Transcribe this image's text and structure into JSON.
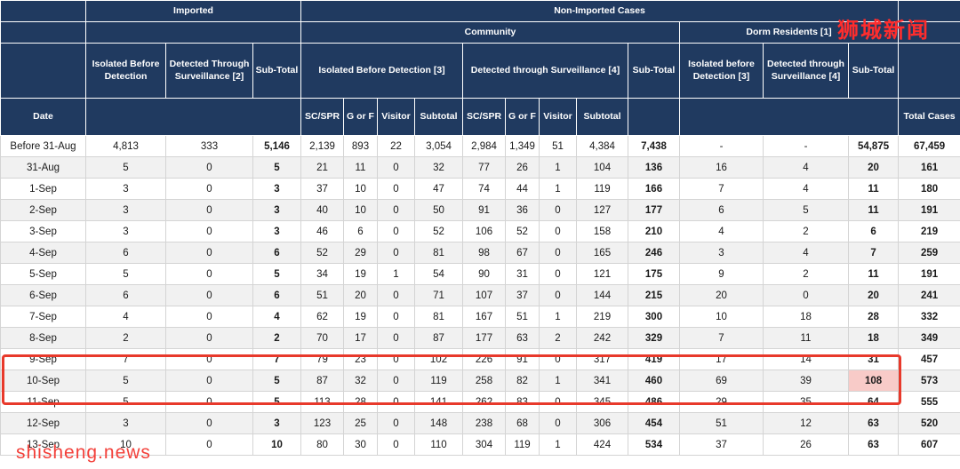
{
  "watermarks": {
    "top_right": "狮城新闻",
    "bottom_left": "shisheng.news"
  },
  "colors": {
    "header_bg": "#203a60",
    "highlight_border": "#e8392b",
    "highlight_cell_bg": "#f8cbc8",
    "watermark_red": "#ff2d2d",
    "watermark_site_red": "#f3403a",
    "row_alt": "#f1f1f1",
    "grid_line": "#d4d4d4"
  },
  "header": {
    "imported": "Imported",
    "non_imported": "Non-Imported Cases",
    "community": "Community",
    "dorm_residents": "Dorm Residents [1]",
    "imported_isolated": "Isolated Before Detection",
    "imported_surveillance": "Detected Through Surveillance [2]",
    "imported_subtotal": "Sub-Total",
    "community_isolated": "Isolated Before Detection [3]",
    "community_surveillance": "Detected through Surveillance [4]",
    "community_subtotal": "Sub-Total",
    "dorm_isolated": "Isolated before Detection [3]",
    "dorm_surveillance": "Detected through Surveillance [4]",
    "dorm_subtotal": "Sub-Total",
    "date": "Date",
    "sc_spr": "SC/SPR",
    "g_or_f": "G or F",
    "visitor": "Visitor",
    "subtotal": "Subtotal",
    "total_cases": "Total Cases"
  },
  "table": {
    "column_keys": [
      "date",
      "imported_isolated",
      "imported_surveillance",
      "imported_subtotal",
      "comm_iso_scspr",
      "comm_iso_gorf",
      "comm_iso_visitor",
      "comm_iso_subtotal",
      "comm_sur_scspr",
      "comm_sur_gorf",
      "comm_sur_visitor",
      "comm_sur_subtotal",
      "community_subtotal",
      "dorm_isolated",
      "dorm_surveillance",
      "dorm_subtotal",
      "total_cases"
    ],
    "bold_columns": [
      3,
      12,
      15,
      16
    ],
    "rows": [
      [
        "Before 31-Aug",
        "4,813",
        "333",
        "5,146",
        "2,139",
        "893",
        "22",
        "3,054",
        "2,984",
        "1,349",
        "51",
        "4,384",
        "7,438",
        "-",
        "-",
        "54,875",
        "67,459"
      ],
      [
        "31-Aug",
        "5",
        "0",
        "5",
        "21",
        "11",
        "0",
        "32",
        "77",
        "26",
        "1",
        "104",
        "136",
        "16",
        "4",
        "20",
        "161"
      ],
      [
        "1-Sep",
        "3",
        "0",
        "3",
        "37",
        "10",
        "0",
        "47",
        "74",
        "44",
        "1",
        "119",
        "166",
        "7",
        "4",
        "11",
        "180"
      ],
      [
        "2-Sep",
        "3",
        "0",
        "3",
        "40",
        "10",
        "0",
        "50",
        "91",
        "36",
        "0",
        "127",
        "177",
        "6",
        "5",
        "11",
        "191"
      ],
      [
        "3-Sep",
        "3",
        "0",
        "3",
        "46",
        "6",
        "0",
        "52",
        "106",
        "52",
        "0",
        "158",
        "210",
        "4",
        "2",
        "6",
        "219"
      ],
      [
        "4-Sep",
        "6",
        "0",
        "6",
        "52",
        "29",
        "0",
        "81",
        "98",
        "67",
        "0",
        "165",
        "246",
        "3",
        "4",
        "7",
        "259"
      ],
      [
        "5-Sep",
        "5",
        "0",
        "5",
        "34",
        "19",
        "1",
        "54",
        "90",
        "31",
        "0",
        "121",
        "175",
        "9",
        "2",
        "11",
        "191"
      ],
      [
        "6-Sep",
        "6",
        "0",
        "6",
        "51",
        "20",
        "0",
        "71",
        "107",
        "37",
        "0",
        "144",
        "215",
        "20",
        "0",
        "20",
        "241"
      ],
      [
        "7-Sep",
        "4",
        "0",
        "4",
        "62",
        "19",
        "0",
        "81",
        "167",
        "51",
        "1",
        "219",
        "300",
        "10",
        "18",
        "28",
        "332"
      ],
      [
        "8-Sep",
        "2",
        "0",
        "2",
        "70",
        "17",
        "0",
        "87",
        "177",
        "63",
        "2",
        "242",
        "329",
        "7",
        "11",
        "18",
        "349"
      ],
      [
        "9-Sep",
        "7",
        "0",
        "7",
        "79",
        "23",
        "0",
        "102",
        "226",
        "91",
        "0",
        "317",
        "419",
        "17",
        "14",
        "31",
        "457"
      ],
      [
        "10-Sep",
        "5",
        "0",
        "5",
        "87",
        "32",
        "0",
        "119",
        "258",
        "82",
        "1",
        "341",
        "460",
        "69",
        "39",
        "108",
        "573"
      ],
      [
        "11-Sep",
        "5",
        "0",
        "5",
        "113",
        "28",
        "0",
        "141",
        "262",
        "83",
        "0",
        "345",
        "486",
        "29",
        "35",
        "64",
        "555"
      ],
      [
        "12-Sep",
        "3",
        "0",
        "3",
        "123",
        "25",
        "0",
        "148",
        "238",
        "68",
        "0",
        "306",
        "454",
        "51",
        "12",
        "63",
        "520"
      ],
      [
        "13-Sep",
        "10",
        "0",
        "10",
        "80",
        "30",
        "0",
        "110",
        "304",
        "119",
        "1",
        "424",
        "534",
        "37",
        "26",
        "63",
        "607"
      ]
    ]
  },
  "highlights": {
    "boxed_rows": [
      "9-Sep",
      "10-Sep"
    ],
    "cell": {
      "row": "10-Sep",
      "column": "dorm_subtotal"
    }
  }
}
